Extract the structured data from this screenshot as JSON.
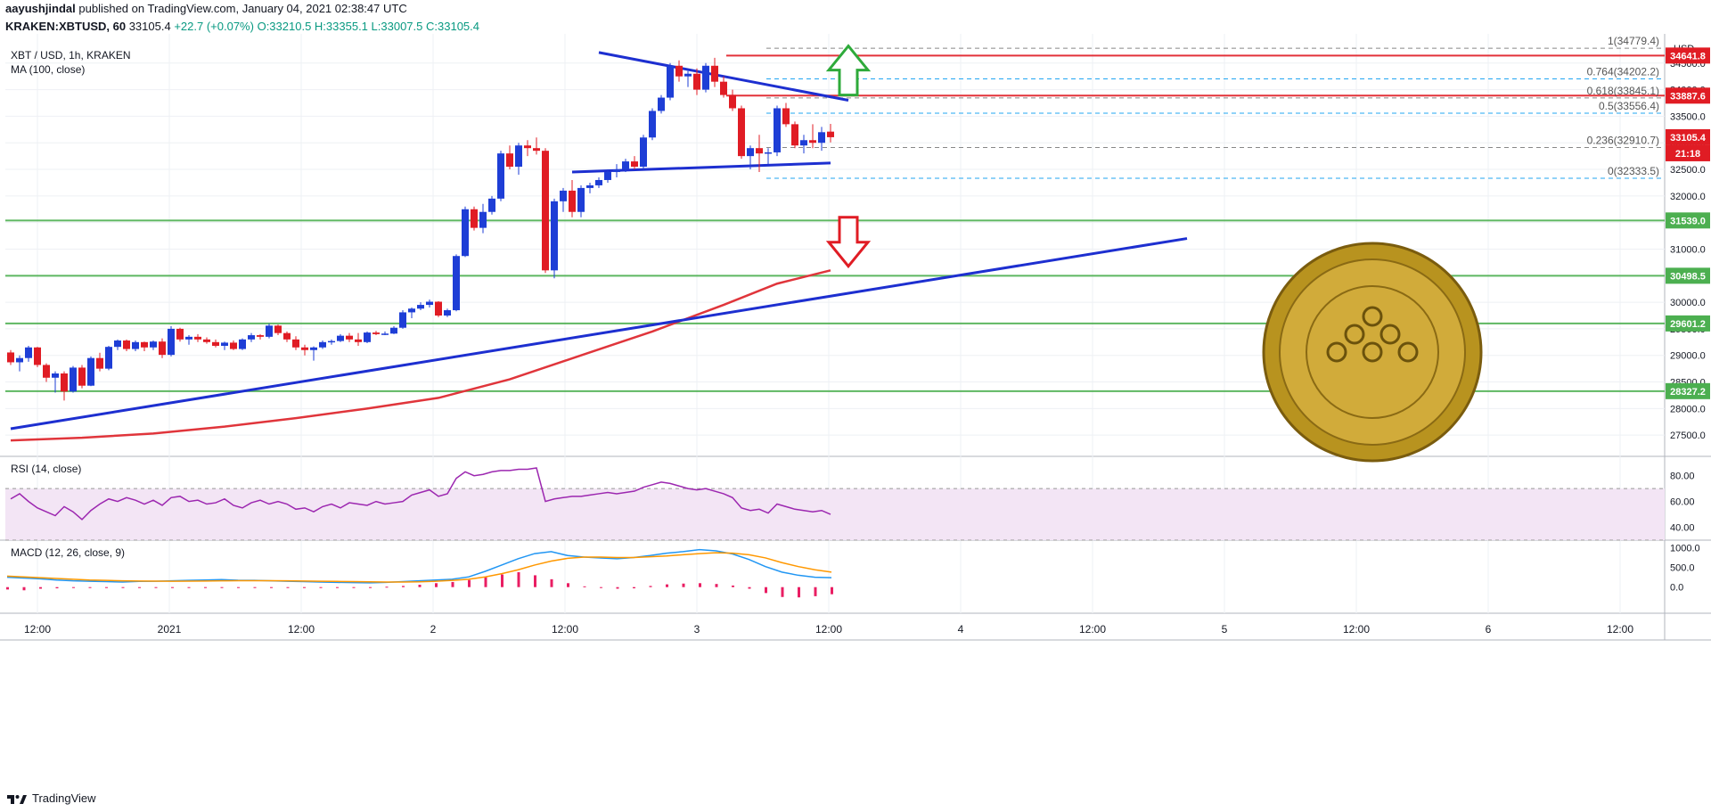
{
  "header": {
    "author": "aayushjindal",
    "published": "published on TradingView.com, January 04, 2021 02:38:47 UTC",
    "symbol": "KRAKEN:XBTUSD, 60",
    "last": "33105.4",
    "change": "+22.7 (+0.07%)",
    "ohlc": {
      "o": "O:33210.5",
      "h": "H:33355.1",
      "l": "L:33007.5",
      "c": "C:33105.4"
    }
  },
  "legend": {
    "pair": "XBT / USD, 1h, KRAKEN",
    "ma": "MA (100, close)",
    "rsi": "RSI (14, close)",
    "macd": "MACD (12, 26, close, 9)"
  },
  "footer": {
    "brand": "TradingView"
  },
  "colors": {
    "up": "#1e3ed6",
    "down": "#e01c24",
    "trend": "#1d2fd0",
    "ma": "#e0353b",
    "support": "#4caf50",
    "resistance": "#e01c24",
    "rsi": "#9c27b0",
    "macd": "#2196f3",
    "signal": "#ff9800",
    "hist": "#e91e63"
  },
  "chart_data": {
    "type": "candlestick",
    "y_axis": {
      "unit": "USD",
      "ticks": [
        27500,
        28000,
        28500,
        29000,
        29500,
        30000,
        30500,
        31000,
        31500,
        32000,
        32500,
        33000,
        33500,
        34000,
        34500
      ]
    },
    "x_axis": {
      "ticks": [
        "12:00",
        "2021",
        "12:00",
        "2",
        "12:00",
        "3",
        "12:00",
        "4",
        "12:00",
        "5",
        "12:00",
        "6",
        "12:00"
      ]
    },
    "price_labels": [
      {
        "value": "34641.8",
        "kind": "resistance"
      },
      {
        "value": "33887.6",
        "kind": "resistance"
      },
      {
        "value": "33105.4",
        "kind": "current"
      },
      {
        "value": "21:18",
        "kind": "countdown"
      },
      {
        "value": "31539.0",
        "kind": "support"
      },
      {
        "value": "30498.5",
        "kind": "support"
      },
      {
        "value": "29601.2",
        "kind": "support"
      },
      {
        "value": "28327.2",
        "kind": "support"
      }
    ],
    "fib_levels": [
      {
        "label": "1(34779.4)",
        "value": 34779.4
      },
      {
        "label": "0.764(34202.2)",
        "value": 34202.2
      },
      {
        "label": "0.618(33845.1)",
        "value": 33845.1
      },
      {
        "label": "0.5(33556.4)",
        "value": 33556.4
      },
      {
        "label": "0.236(32910.7)",
        "value": 32910.7
      },
      {
        "label": "0(32333.5)",
        "value": 32333.5
      }
    ],
    "hlines": [
      34641.8,
      33887.6,
      31539.0,
      30498.5,
      29601.2,
      28327.2
    ],
    "candles": [
      [
        29055,
        29100,
        28820,
        28870
      ],
      [
        28870,
        29000,
        28700,
        28950
      ],
      [
        28950,
        29180,
        28880,
        29150
      ],
      [
        29150,
        29160,
        28780,
        28820
      ],
      [
        28820,
        28850,
        28500,
        28580
      ],
      [
        28580,
        28700,
        28300,
        28660
      ],
      [
        28660,
        28700,
        28150,
        28320
      ],
      [
        28320,
        28800,
        28300,
        28770
      ],
      [
        28770,
        28820,
        28380,
        28430
      ],
      [
        28430,
        28980,
        28420,
        28950
      ],
      [
        28950,
        29050,
        28700,
        28750
      ],
      [
        28750,
        29180,
        28720,
        29160
      ],
      [
        29160,
        29300,
        29100,
        29280
      ],
      [
        29280,
        29300,
        29080,
        29120
      ],
      [
        29120,
        29280,
        29080,
        29250
      ],
      [
        29250,
        29260,
        29080,
        29150
      ],
      [
        29150,
        29280,
        29100,
        29260
      ],
      [
        29260,
        29320,
        28950,
        29010
      ],
      [
        29010,
        29550,
        28980,
        29500
      ],
      [
        29500,
        29520,
        29260,
        29300
      ],
      [
        29300,
        29380,
        29200,
        29350
      ],
      [
        29350,
        29400,
        29250,
        29300
      ],
      [
        29300,
        29340,
        29220,
        29250
      ],
      [
        29250,
        29300,
        29150,
        29180
      ],
      [
        29180,
        29260,
        29100,
        29240
      ],
      [
        29240,
        29280,
        29100,
        29120
      ],
      [
        29120,
        29320,
        29100,
        29300
      ],
      [
        29300,
        29420,
        29250,
        29380
      ],
      [
        29380,
        29400,
        29300,
        29350
      ],
      [
        29350,
        29600,
        29320,
        29560
      ],
      [
        29560,
        29580,
        29380,
        29420
      ],
      [
        29420,
        29450,
        29250,
        29300
      ],
      [
        29300,
        29360,
        29100,
        29150
      ],
      [
        29150,
        29200,
        29000,
        29100
      ],
      [
        29100,
        29170,
        28900,
        29150
      ],
      [
        29150,
        29280,
        29120,
        29250
      ],
      [
        29250,
        29300,
        29200,
        29270
      ],
      [
        29270,
        29400,
        29250,
        29370
      ],
      [
        29370,
        29420,
        29250,
        29300
      ],
      [
        29300,
        29420,
        29180,
        29250
      ],
      [
        29250,
        29450,
        29230,
        29430
      ],
      [
        29430,
        29460,
        29380,
        29400
      ],
      [
        29400,
        29450,
        29380,
        29410
      ],
      [
        29410,
        29550,
        29400,
        29520
      ],
      [
        29520,
        29850,
        29500,
        29810
      ],
      [
        29810,
        29900,
        29700,
        29880
      ],
      [
        29880,
        30000,
        29850,
        29950
      ],
      [
        29950,
        30050,
        29900,
        30010
      ],
      [
        30010,
        30020,
        29720,
        29750
      ],
      [
        29750,
        29880,
        29720,
        29850
      ],
      [
        29850,
        30900,
        29830,
        30870
      ],
      [
        30870,
        31800,
        30850,
        31750
      ],
      [
        31750,
        31800,
        31350,
        31400
      ],
      [
        31400,
        31850,
        31300,
        31700
      ],
      [
        31700,
        32000,
        31650,
        31950
      ],
      [
        31950,
        32850,
        31900,
        32800
      ],
      [
        32800,
        32950,
        32500,
        32550
      ],
      [
        32550,
        33000,
        32400,
        32950
      ],
      [
        32950,
        33050,
        32750,
        32900
      ],
      [
        32900,
        33100,
        32780,
        32850
      ],
      [
        32850,
        32900,
        30550,
        30600
      ],
      [
        30600,
        31950,
        30450,
        31900
      ],
      [
        31900,
        32150,
        31700,
        32100
      ],
      [
        32100,
        32300,
        31600,
        31700
      ],
      [
        31700,
        32200,
        31600,
        32150
      ],
      [
        32150,
        32250,
        32050,
        32200
      ],
      [
        32200,
        32350,
        32150,
        32300
      ],
      [
        32300,
        32500,
        32250,
        32450
      ],
      [
        32450,
        32600,
        32350,
        32500
      ],
      [
        32500,
        32700,
        32450,
        32650
      ],
      [
        32650,
        32750,
        32500,
        32550
      ],
      [
        32550,
        33150,
        32500,
        33100
      ],
      [
        33100,
        33650,
        33050,
        33600
      ],
      [
        33600,
        33900,
        33550,
        33850
      ],
      [
        33850,
        34500,
        33800,
        34450
      ],
      [
        34450,
        34550,
        34150,
        34250
      ],
      [
        34250,
        34350,
        34050,
        34300
      ],
      [
        34300,
        34400,
        33900,
        34000
      ],
      [
        34000,
        34500,
        33950,
        34450
      ],
      [
        34450,
        34600,
        34050,
        34150
      ],
      [
        34150,
        34250,
        33850,
        33900
      ],
      [
        33900,
        34000,
        33600,
        33650
      ],
      [
        33650,
        33700,
        32700,
        32750
      ],
      [
        32750,
        32950,
        32500,
        32900
      ],
      [
        32900,
        33150,
        32450,
        32800
      ],
      [
        32800,
        32900,
        32600,
        32820
      ],
      [
        32820,
        33700,
        32750,
        33650
      ],
      [
        33650,
        33750,
        33300,
        33350
      ],
      [
        33350,
        33400,
        32900,
        32950
      ],
      [
        32950,
        33150,
        32800,
        33050
      ],
      [
        33050,
        33350,
        32900,
        33000
      ],
      [
        33000,
        33300,
        32850,
        33200
      ],
      [
        33210.5,
        33355.1,
        33007.5,
        33105.4
      ]
    ],
    "ma100": [
      [
        0,
        27400
      ],
      [
        8,
        27450
      ],
      [
        16,
        27530
      ],
      [
        24,
        27660
      ],
      [
        32,
        27820
      ],
      [
        40,
        28000
      ],
      [
        48,
        28200
      ],
      [
        56,
        28550
      ],
      [
        64,
        29000
      ],
      [
        72,
        29450
      ],
      [
        80,
        29950
      ],
      [
        86,
        30350
      ],
      [
        92,
        30600
      ]
    ],
    "trendlines": [
      {
        "from": [
          0,
          27620
        ],
        "to": [
          132,
          31200
        ]
      },
      {
        "from": [
          66,
          34700
        ],
        "to": [
          94,
          33800
        ]
      },
      {
        "from": [
          63,
          32450
        ],
        "to": [
          92,
          32620
        ]
      }
    ],
    "arrows": [
      {
        "x": 94,
        "y": 33900,
        "dir": "up"
      },
      {
        "x": 94,
        "y": 31600,
        "dir": "down"
      }
    ],
    "rsi": {
      "ticks": [
        "80.00",
        "60.00",
        "40.00"
      ],
      "values": [
        62,
        66,
        60,
        55,
        52,
        49,
        56,
        52,
        46,
        53,
        58,
        62,
        60,
        63,
        61,
        58,
        61,
        57,
        63,
        64,
        60,
        61,
        58,
        59,
        62,
        57,
        55,
        59,
        61,
        58,
        60,
        58,
        54,
        55,
        52,
        56,
        58,
        55,
        59,
        58,
        57,
        60,
        58,
        59,
        60,
        65,
        67,
        69,
        64,
        66,
        78,
        83,
        80,
        81,
        83,
        84,
        84,
        85,
        85,
        86,
        60,
        62,
        63,
        64,
        64,
        65,
        66,
        67,
        66,
        67,
        68,
        71,
        73,
        75,
        74,
        72,
        70,
        69,
        70,
        68,
        66,
        63,
        55,
        53,
        54,
        51,
        58,
        56,
        54,
        53,
        52,
        53,
        50
      ]
    },
    "macd": {
      "ticks": [
        "1000.0",
        "500.0",
        "0.0"
      ],
      "macd": [
        250,
        230,
        210,
        180,
        160,
        150,
        140,
        130,
        145,
        150,
        160,
        170,
        180,
        190,
        175,
        170,
        160,
        150,
        140,
        130,
        120,
        115,
        110,
        120,
        140,
        160,
        180,
        200,
        260,
        400,
        560,
        720,
        850,
        900,
        800,
        760,
        740,
        720,
        750,
        800,
        860,
        900,
        950,
        920,
        840,
        700,
        520,
        380,
        300,
        250,
        240
      ],
      "signal": [
        280,
        260,
        240,
        220,
        200,
        180,
        170,
        160,
        155,
        152,
        150,
        152,
        155,
        160,
        162,
        163,
        162,
        160,
        155,
        150,
        145,
        140,
        135,
        130,
        130,
        135,
        150,
        170,
        200,
        260,
        340,
        440,
        560,
        660,
        730,
        760,
        760,
        750,
        750,
        770,
        790,
        820,
        850,
        870,
        860,
        820,
        740,
        620,
        520,
        440,
        380
      ],
      "hist": [
        -60,
        -80,
        -40,
        -30,
        -20,
        -20,
        -20,
        -20,
        -15,
        -10,
        -10,
        -15,
        -20,
        -20,
        -10,
        -10,
        -10,
        -10,
        -10,
        -10,
        -5,
        -5,
        -5,
        10,
        30,
        60,
        100,
        130,
        180,
        250,
        320,
        380,
        300,
        200,
        100,
        20,
        -20,
        -40,
        -30,
        30,
        70,
        90,
        100,
        80,
        40,
        -40,
        -150,
        -250,
        -260,
        -230,
        -180
      ]
    }
  }
}
